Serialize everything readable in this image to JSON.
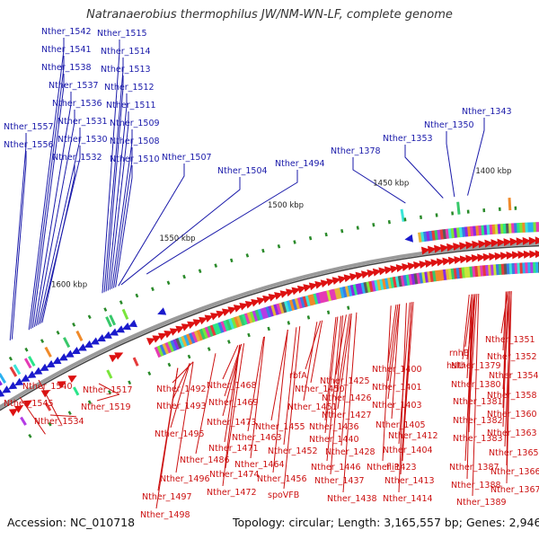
{
  "title": "Natranaerobius thermophilus JW/NM-WN-LF, complete genome",
  "footer": {
    "accession_label": "Accession:",
    "accession": "NC_010718",
    "topology_label": "Topology:",
    "topology": "circular",
    "length_label": "Length:",
    "length": "3,165,557 bp",
    "genes_label": "Genes:",
    "genes": "2,946"
  },
  "colors": {
    "forward_strand": "#1a1acc",
    "reverse_strand": "#dd1111",
    "label_upper": "#1a1aaa",
    "label_lower": "#cc1111",
    "backbone": "#888888",
    "marker": "#2a8a2a"
  },
  "ticks": [
    "1400 kbp",
    "1450 kbp",
    "1500 kbp",
    "1550 kbp",
    "1600 kbp"
  ],
  "upper_labels": [
    "Nther_1542",
    "Nther_1541",
    "Nther_1538",
    "Nther_1537",
    "Nther_1536",
    "Nther_1531",
    "Nther_1530",
    "Nther_1532",
    "Nther_1557",
    "Nther_1556",
    "Nther_1515",
    "Nther_1514",
    "Nther_1513",
    "Nther_1512",
    "Nther_1511",
    "Nther_1509",
    "Nther_1508",
    "Nther_1510",
    "Nther_1507",
    "Nther_1504",
    "Nther_1494",
    "Nther_1378",
    "Nther_1353",
    "Nther_1350",
    "Nther_1343"
  ],
  "lower_labels": [
    "Nther_1540",
    "Nther_1545",
    "Nther_1534",
    "Nther_1517",
    "Nther_1519",
    "Nther_1492",
    "Nther_1493",
    "Nther_1495",
    "Nther_1486",
    "Nther_1496",
    "Nther_1497",
    "Nther_1498",
    "Nther_1468",
    "Nther_1469",
    "Nther_1473",
    "Nther_1471",
    "Nther_1463",
    "Nther_1474",
    "Nther_1464",
    "Nther_1472",
    "rbfA",
    "Nther_1450",
    "Nther_1451",
    "Nther_1455",
    "Nther_1452",
    "Nther_1456",
    "spoVFB",
    "Nther_1425",
    "Nther_1426",
    "Nther_1427",
    "Nther_1436",
    "Nther_1440",
    "Nther_1446",
    "Nther_1428",
    "Nther_1437",
    "Nther_1438",
    "Nther_1400",
    "Nther_1401",
    "Nther_1403",
    "Nther_1405",
    "Nther_1412",
    "Nther_1404",
    "Nther_1423",
    "fliP",
    "Nther_1413",
    "Nther_1414",
    "rnhB",
    "Nther_1379",
    "Nther_1380",
    "Nther_1381",
    "Nther_1382",
    "Nther_1383",
    "hslU",
    "Nther_1387",
    "Nther_1388",
    "Nther_1389",
    "Nther_1351",
    "Nther_1352",
    "Nther_1354",
    "Nther_1358",
    "Nther_1360",
    "Nther_1363",
    "Nther_1365",
    "Nther_1366",
    "Nther_1367"
  ]
}
